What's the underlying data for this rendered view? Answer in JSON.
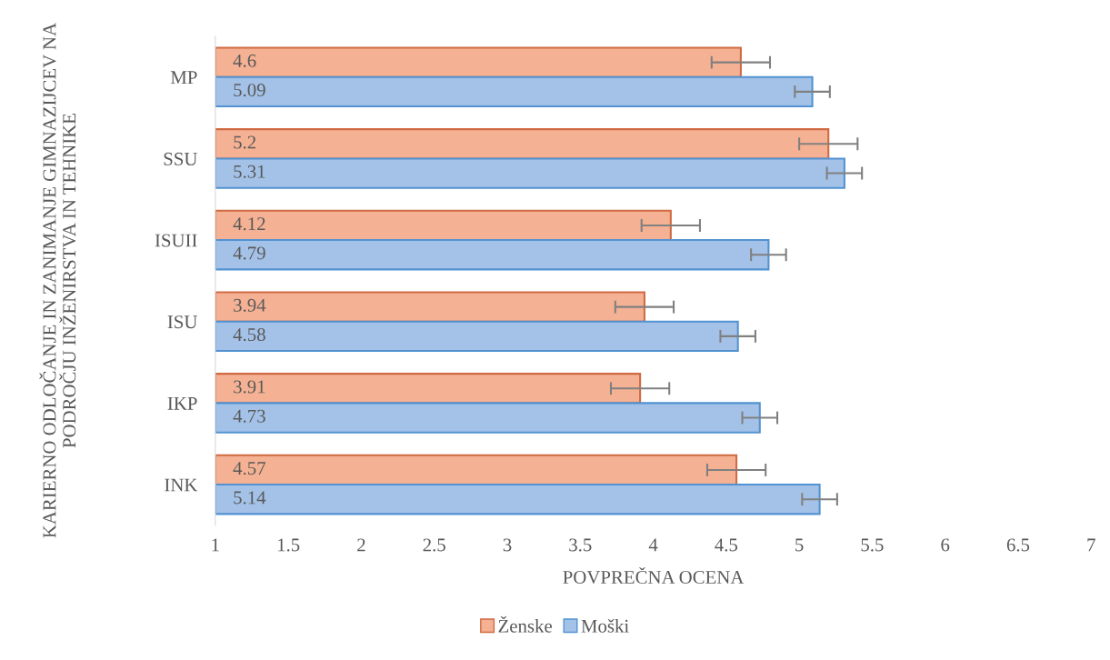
{
  "chart_data": {
    "type": "bar",
    "orientation": "horizontal",
    "xlabel": "POVPREČNA OCENA",
    "ylabel": "KARIERNO ODLOČANJE IN ZANIMANJE GIMNAZIJCEV NA PODROČJU INŽENIRSTVA IN TEHNIKE",
    "categories": [
      "MP",
      "SSU",
      "ISUII",
      "ISU",
      "IKP",
      "INK"
    ],
    "series": [
      {
        "name": "Ženske",
        "color": "#f5b193",
        "values": [
          4.6,
          5.2,
          4.12,
          3.94,
          3.91,
          4.57
        ],
        "errors": [
          0.2,
          0.2,
          0.2,
          0.2,
          0.2,
          0.2
        ]
      },
      {
        "name": "Moški",
        "color": "#a4c2e8",
        "values": [
          5.09,
          5.31,
          4.79,
          4.58,
          4.73,
          5.14
        ],
        "errors": [
          0.12,
          0.12,
          0.12,
          0.12,
          0.12,
          0.12
        ]
      }
    ],
    "xlim": [
      1,
      7
    ],
    "xticks": [
      1,
      1.5,
      2,
      2.5,
      3,
      3.5,
      4,
      4.5,
      5,
      5.5,
      6,
      6.5,
      7
    ],
    "data_labels": true,
    "grid": false,
    "legend": "bottom"
  }
}
